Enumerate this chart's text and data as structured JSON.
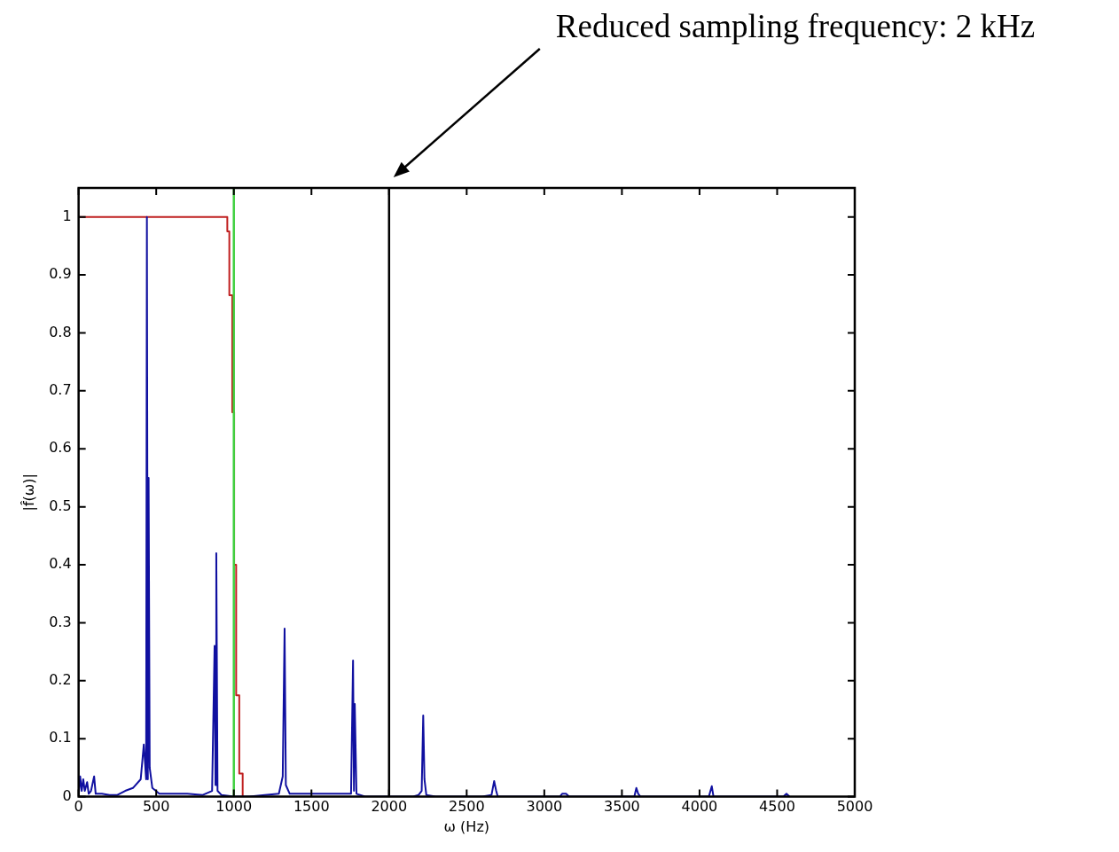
{
  "chart_data": {
    "type": "line",
    "xlabel": "ω (Hz)",
    "ylabel": "|f̂(ω)|",
    "xlim": [
      0,
      5000
    ],
    "xticks": [
      0,
      500,
      1000,
      1500,
      2000,
      2500,
      3000,
      3500,
      4000,
      4500,
      5000
    ],
    "ylim": [
      0,
      1.05
    ],
    "yticks": [
      0,
      0.1,
      0.2,
      0.3,
      0.4,
      0.5,
      0.6,
      0.7,
      0.8,
      0.9,
      1
    ],
    "grid": false,
    "legend": false,
    "marker": "none",
    "line_style": "solid",
    "series": [
      {
        "color": "#1010a0",
        "x": [
          0,
          10,
          20,
          30,
          40,
          55,
          65,
          80,
          100,
          110,
          150,
          200,
          250,
          300,
          350,
          400,
          420,
          435,
          440,
          446,
          451,
          458,
          475,
          520,
          600,
          700,
          800,
          860,
          876,
          882,
          887,
          895,
          920,
          1000,
          1100,
          1200,
          1290,
          1315,
          1327,
          1335,
          1360,
          1500,
          1700,
          1755,
          1768,
          1774,
          1779,
          1790,
          1850,
          2000,
          2150,
          2190,
          2210,
          2220,
          2228,
          2240,
          2300,
          2600,
          2660,
          2677,
          2690,
          2700,
          3100,
          3115,
          3140,
          3160,
          3580,
          3593,
          3605,
          3620,
          4060,
          4079,
          4090,
          4540,
          4560,
          4580
        ],
        "values": [
          0,
          0.035,
          0.01,
          0.03,
          0.01,
          0.025,
          0.005,
          0.01,
          0.035,
          0.005,
          0.005,
          0.003,
          0.003,
          0.01,
          0.015,
          0.03,
          0.09,
          0.03,
          1.0,
          0.03,
          0.55,
          0.05,
          0.015,
          0.005,
          0.005,
          0.005,
          0.003,
          0.01,
          0.26,
          0.02,
          0.42,
          0.01,
          0.003,
          0,
          0,
          0.003,
          0.005,
          0.035,
          0.29,
          0.02,
          0.005,
          0.005,
          0.005,
          0.005,
          0.235,
          0.01,
          0.16,
          0.005,
          0,
          0,
          0,
          0.003,
          0.01,
          0.14,
          0.03,
          0.003,
          0,
          0,
          0.003,
          0.027,
          0.01,
          0,
          0,
          0.005,
          0.005,
          0,
          0,
          0.015,
          0.005,
          0,
          0,
          0.018,
          0,
          0,
          0.005,
          0
        ]
      },
      {
        "color": "#c02020",
        "x": [
          0,
          958,
          958,
          971,
          971,
          990,
          990,
          1002,
          1002,
          1015,
          1015,
          1035,
          1035,
          1057,
          1057
        ],
        "values": [
          1,
          1,
          0.975,
          0.975,
          0.865,
          0.865,
          0.663,
          0.663,
          0.4,
          0.4,
          0.175,
          0.175,
          0.04,
          0.04,
          0
        ]
      }
    ],
    "ref_lines": [
      {
        "axis": "x",
        "value": 1000,
        "color": "#40d040"
      },
      {
        "axis": "x",
        "value": 2000,
        "color": "#000000"
      }
    ],
    "annotations": [
      "Reduced sampling frequency: 2 kHz"
    ]
  }
}
